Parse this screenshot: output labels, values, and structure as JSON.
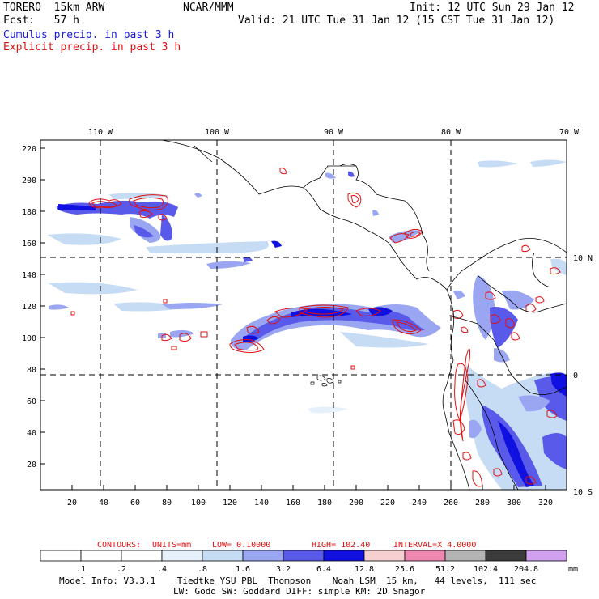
{
  "header": {
    "model": "TORERO  15km ARW",
    "org": "NCAR/MMM",
    "init": "Init: 12 UTC Sun 29 Jan 12",
    "fcst": "Fcst:   57 h",
    "valid": "Valid: 21 UTC Tue 31 Jan 12 (15 CST Tue 31 Jan 12)",
    "field1": "Cumulus precip. in past 3 h",
    "field2": "Explicit precip. in past 3 h"
  },
  "colors": {
    "field1": "#1a1ad6",
    "field2": "#e01010"
  },
  "map": {
    "lon_labels": [
      "110 W",
      "100 W",
      "90 W",
      "80 W",
      "70 W"
    ],
    "lat_labels": [
      "10 N",
      "0",
      "10 S"
    ],
    "y_ticks": [
      "220",
      "200",
      "180",
      "160",
      "140",
      "120",
      "100",
      "80",
      "60",
      "40",
      "20"
    ],
    "x_ticks": [
      "20",
      "40",
      "60",
      "80",
      "100",
      "120",
      "140",
      "160",
      "180",
      "200",
      "220",
      "240",
      "260",
      "280",
      "300",
      "320"
    ]
  },
  "contour_info": {
    "label": "CONTOURS:",
    "units": "UNITS=mm",
    "low": "LOW= 0.10000",
    "high": "HIGH=  102.40",
    "interval": "INTERVAL=X  4.0000"
  },
  "colorbar": {
    "labels": [
      ".1",
      ".2",
      ".4",
      ".8",
      "1.6",
      "3.2",
      "6.4",
      "12.8",
      "25.6",
      "51.2",
      "102.4",
      "204.8"
    ],
    "unit": "mm",
    "colors": [
      "#ffffff",
      "#ffffff",
      "#ffffff",
      "#e6f0fb",
      "#c6dcf5",
      "#9aa6f2",
      "#5a5aea",
      "#1010e0",
      "#f6d0d0",
      "#ef88b0",
      "#b4b4b4",
      "#3c3c3c",
      "#d2a0f0"
    ]
  },
  "footer": {
    "line1": "Model Info: V3.3.1    Tiedtke YSU PBL  Thompson    Noah LSM  15 km,   44 levels,  111 sec",
    "line2": "LW: Godd SW: Goddard DIFF: simple KM: 2D Smagor"
  }
}
